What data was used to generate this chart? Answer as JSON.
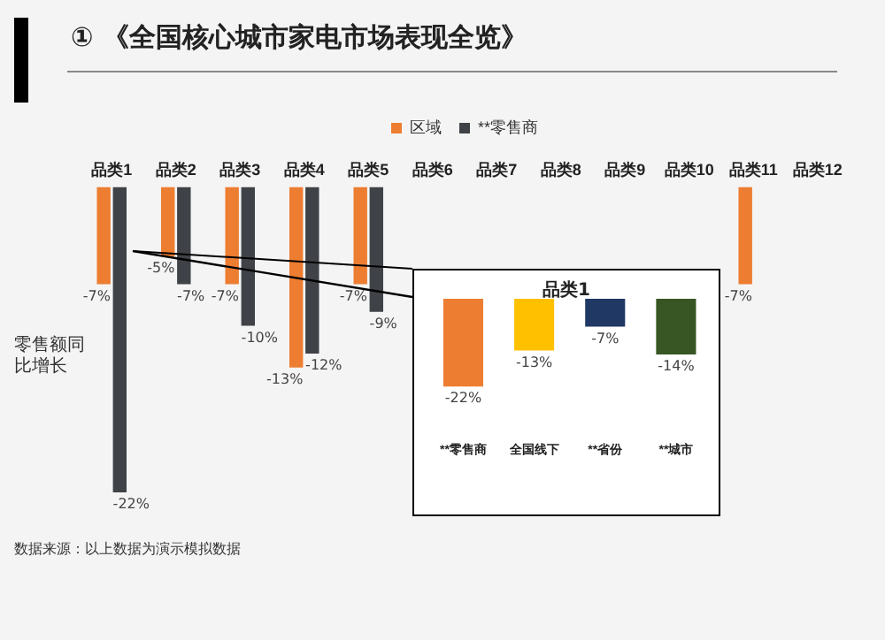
{
  "chart_data": [
    {
      "type": "bar",
      "title": "① 《全国核心城市家电市场表现全览》",
      "ylabel": "零售额同比增长",
      "categories": [
        "品类1",
        "品类2",
        "品类3",
        "品类4",
        "品类5",
        "品类6",
        "品类7",
        "品类8",
        "品类9",
        "品类10",
        "品类11",
        "品类12"
      ],
      "series": [
        {
          "name": "区域",
          "color": "#ed7d31",
          "values": [
            -7,
            -5,
            -7,
            -13,
            -7,
            null,
            null,
            null,
            null,
            null,
            -7,
            null
          ],
          "value_labels": [
            "-7%",
            "-5%",
            "-7%",
            "-13%",
            "-7%",
            null,
            null,
            null,
            null,
            null,
            "-7%",
            null
          ]
        },
        {
          "name": "**零售商",
          "color": "#3f4247",
          "values": [
            -22,
            -7,
            -10,
            -12,
            -9,
            null,
            null,
            null,
            null,
            null,
            null,
            null
          ],
          "value_labels": [
            "-22%",
            "-7%",
            "-10%",
            "-12%",
            "-9%",
            null,
            null,
            null,
            null,
            null,
            null,
            null
          ]
        }
      ],
      "tick_labels": "x",
      "legend": "top",
      "grid": false,
      "annotations": [
        "数据来源：以上数据为演示模拟数据"
      ]
    },
    {
      "type": "bar",
      "title": "品类1",
      "categories": [
        "**零售商",
        "全国线下",
        "**省份",
        "**城市"
      ],
      "values": [
        -22,
        -13,
        -7,
        -14
      ],
      "colors": [
        "#ed7d31",
        "#ffc000",
        "#1f3864",
        "#375623"
      ],
      "value_labels": [
        "-22%",
        "-13%",
        "-7%",
        "-14%"
      ],
      "tick_labels": "x",
      "grid": false
    }
  ]
}
